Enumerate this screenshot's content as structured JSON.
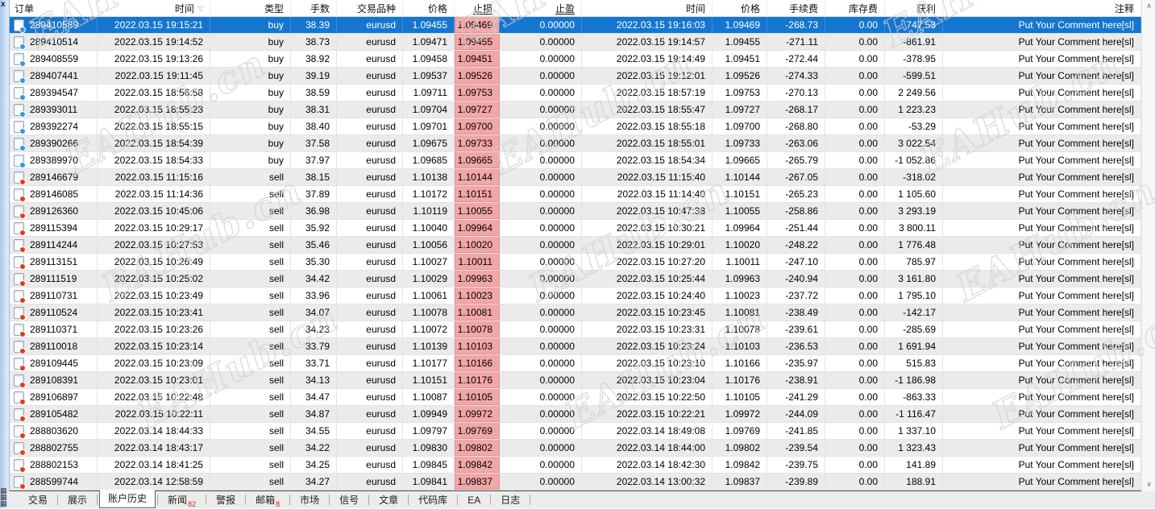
{
  "panel": {
    "close_label": "x",
    "corner_glyph": "▦▦▦"
  },
  "watermark": {
    "text": "EAHub.cn"
  },
  "colors": {
    "selection": "#1576d0",
    "sl_cell": "#f2a6a6",
    "buy_dot": "#2d9ae3",
    "sell_dot": "#df3b20",
    "badge": "#e02020"
  },
  "scrollbar": {
    "up_glyph": "∧",
    "down_glyph": "∨"
  },
  "table": {
    "sort_glyph": "▽",
    "columns": [
      {
        "id": "order",
        "label": "订单",
        "align": "l"
      },
      {
        "id": "time_open",
        "label": "时间",
        "align": "r",
        "sort": true
      },
      {
        "id": "type",
        "label": "类型",
        "align": "r"
      },
      {
        "id": "lots",
        "label": "手数",
        "align": "r"
      },
      {
        "id": "symbol",
        "label": "交易品种",
        "align": "r"
      },
      {
        "id": "price_open",
        "label": "价格",
        "align": "r"
      },
      {
        "id": "sl",
        "label": "止损",
        "align": "r",
        "underline": true
      },
      {
        "id": "tp",
        "label": "止盈",
        "align": "r",
        "underline": true
      },
      {
        "id": "time_close",
        "label": "时间",
        "align": "r"
      },
      {
        "id": "price_close",
        "label": "价格",
        "align": "r"
      },
      {
        "id": "commission",
        "label": "手续费",
        "align": "r"
      },
      {
        "id": "swap",
        "label": "库存费",
        "align": "r"
      },
      {
        "id": "profit",
        "label": "获利",
        "align": "r"
      },
      {
        "id": "comment",
        "label": "注释",
        "align": "r"
      }
    ],
    "rows": [
      {
        "selected": true,
        "order": "289410589",
        "time_open": "2022.03.15 19:15:21",
        "type": "buy",
        "lots": "38.39",
        "symbol": "eurusd",
        "price_open": "1.09455",
        "sl": "1.09469",
        "tp": "0.00000",
        "time_close": "2022.03.15 19:16:03",
        "price_close": "1.09469",
        "commission": "-268.73",
        "swap": "0.00",
        "profit": "747.53",
        "comment": "Put Your Comment here[sl]"
      },
      {
        "order": "289410514",
        "time_open": "2022.03.15 19:14:52",
        "type": "buy",
        "lots": "38.73",
        "symbol": "eurusd",
        "price_open": "1.09471",
        "sl": "1.09455",
        "tp": "0.00000",
        "time_close": "2022.03.15 19:14:57",
        "price_close": "1.09455",
        "commission": "-271.11",
        "swap": "0.00",
        "profit": "-861.91",
        "comment": "Put Your Comment here[sl]"
      },
      {
        "order": "289408559",
        "time_open": "2022.03.15 19:13:26",
        "type": "buy",
        "lots": "38.92",
        "symbol": "eurusd",
        "price_open": "1.09458",
        "sl": "1.09451",
        "tp": "0.00000",
        "time_close": "2022.03.15 19:14:49",
        "price_close": "1.09451",
        "commission": "-272.44",
        "swap": "0.00",
        "profit": "-378.95",
        "comment": "Put Your Comment here[sl]"
      },
      {
        "order": "289407441",
        "time_open": "2022.03.15 19:11:45",
        "type": "buy",
        "lots": "39.19",
        "symbol": "eurusd",
        "price_open": "1.09537",
        "sl": "1.09526",
        "tp": "0.00000",
        "time_close": "2022.03.15 19:12:01",
        "price_close": "1.09526",
        "commission": "-274.33",
        "swap": "0.00",
        "profit": "-599.51",
        "comment": "Put Your Comment here[sl]"
      },
      {
        "order": "289394547",
        "time_open": "2022.03.15 18:56:58",
        "type": "buy",
        "lots": "38.59",
        "symbol": "eurusd",
        "price_open": "1.09711",
        "sl": "1.09753",
        "tp": "0.00000",
        "time_close": "2022.03.15 18:57:19",
        "price_close": "1.09753",
        "commission": "-270.13",
        "swap": "0.00",
        "profit": "2 249.56",
        "comment": "Put Your Comment here[sl]"
      },
      {
        "order": "289393011",
        "time_open": "2022.03.15 18:55:23",
        "type": "buy",
        "lots": "38.31",
        "symbol": "eurusd",
        "price_open": "1.09704",
        "sl": "1.09727",
        "tp": "0.00000",
        "time_close": "2022.03.15 18:55:47",
        "price_close": "1.09727",
        "commission": "-268.17",
        "swap": "0.00",
        "profit": "1 223.23",
        "comment": "Put Your Comment here[sl]"
      },
      {
        "order": "289392274",
        "time_open": "2022.03.15 18:55:15",
        "type": "buy",
        "lots": "38.40",
        "symbol": "eurusd",
        "price_open": "1.09701",
        "sl": "1.09700",
        "tp": "0.00000",
        "time_close": "2022.03.15 18:55:18",
        "price_close": "1.09700",
        "commission": "-268.80",
        "swap": "0.00",
        "profit": "-53.29",
        "comment": "Put Your Comment here[sl]"
      },
      {
        "order": "289390266",
        "time_open": "2022.03.15 18:54:39",
        "type": "buy",
        "lots": "37.58",
        "symbol": "eurusd",
        "price_open": "1.09675",
        "sl": "1.09733",
        "tp": "0.00000",
        "time_close": "2022.03.15 18:55:01",
        "price_close": "1.09733",
        "commission": "-263.06",
        "swap": "0.00",
        "profit": "3 022.54",
        "comment": "Put Your Comment here[sl]"
      },
      {
        "order": "289389970",
        "time_open": "2022.03.15 18:54:33",
        "type": "buy",
        "lots": "37.97",
        "symbol": "eurusd",
        "price_open": "1.09685",
        "sl": "1.09665",
        "tp": "0.00000",
        "time_close": "2022.03.15 18:54:34",
        "price_close": "1.09665",
        "commission": "-265.79",
        "swap": "0.00",
        "profit": "-1 052.86",
        "comment": "Put Your Comment here[sl]"
      },
      {
        "order": "289146679",
        "time_open": "2022.03.15 11:15:16",
        "type": "sell",
        "lots": "38.15",
        "symbol": "eurusd",
        "price_open": "1.10138",
        "sl": "1.10144",
        "tp": "0.00000",
        "time_close": "2022.03.15 11:15:40",
        "price_close": "1.10144",
        "commission": "-267.05",
        "swap": "0.00",
        "profit": "-318.02",
        "comment": "Put Your Comment here[sl]"
      },
      {
        "order": "289146085",
        "time_open": "2022.03.15 11:14:36",
        "type": "sell",
        "lots": "37.89",
        "symbol": "eurusd",
        "price_open": "1.10172",
        "sl": "1.10151",
        "tp": "0.00000",
        "time_close": "2022.03.15 11:14:40",
        "price_close": "1.10151",
        "commission": "-265.23",
        "swap": "0.00",
        "profit": "1 105.60",
        "comment": "Put Your Comment here[sl]"
      },
      {
        "order": "289126360",
        "time_open": "2022.03.15 10:45:06",
        "type": "sell",
        "lots": "36.98",
        "symbol": "eurusd",
        "price_open": "1.10119",
        "sl": "1.10055",
        "tp": "0.00000",
        "time_close": "2022.03.15 10:47:38",
        "price_close": "1.10055",
        "commission": "-258.86",
        "swap": "0.00",
        "profit": "3 293.19",
        "comment": "Put Your Comment here[sl]"
      },
      {
        "order": "289115394",
        "time_open": "2022.03.15 10:29:17",
        "type": "sell",
        "lots": "35.92",
        "symbol": "eurusd",
        "price_open": "1.10040",
        "sl": "1.09964",
        "tp": "0.00000",
        "time_close": "2022.03.15 10:30:21",
        "price_close": "1.09964",
        "commission": "-251.44",
        "swap": "0.00",
        "profit": "3 800.11",
        "comment": "Put Your Comment here[sl]"
      },
      {
        "order": "289114244",
        "time_open": "2022.03.15 10:27:53",
        "type": "sell",
        "lots": "35.46",
        "symbol": "eurusd",
        "price_open": "1.10056",
        "sl": "1.10020",
        "tp": "0.00000",
        "time_close": "2022.03.15 10:29:01",
        "price_close": "1.10020",
        "commission": "-248.22",
        "swap": "0.00",
        "profit": "1 776.48",
        "comment": "Put Your Comment here[sl]"
      },
      {
        "order": "289113151",
        "time_open": "2022.03.15 10:26:49",
        "type": "sell",
        "lots": "35.30",
        "symbol": "eurusd",
        "price_open": "1.10027",
        "sl": "1.10011",
        "tp": "0.00000",
        "time_close": "2022.03.15 10:27:20",
        "price_close": "1.10011",
        "commission": "-247.10",
        "swap": "0.00",
        "profit": "785.97",
        "comment": "Put Your Comment here[sl]"
      },
      {
        "order": "289111519",
        "time_open": "2022.03.15 10:25:02",
        "type": "sell",
        "lots": "34.42",
        "symbol": "eurusd",
        "price_open": "1.10029",
        "sl": "1.09963",
        "tp": "0.00000",
        "time_close": "2022.03.15 10:25:44",
        "price_close": "1.09963",
        "commission": "-240.94",
        "swap": "0.00",
        "profit": "3 161.80",
        "comment": "Put Your Comment here[sl]"
      },
      {
        "order": "289110731",
        "time_open": "2022.03.15 10:23:49",
        "type": "sell",
        "lots": "33.96",
        "symbol": "eurusd",
        "price_open": "1.10061",
        "sl": "1.10023",
        "tp": "0.00000",
        "time_close": "2022.03.15 10:24:40",
        "price_close": "1.10023",
        "commission": "-237.72",
        "swap": "0.00",
        "profit": "1 795.10",
        "comment": "Put Your Comment here[sl]"
      },
      {
        "order": "289110524",
        "time_open": "2022.03.15 10:23:41",
        "type": "sell",
        "lots": "34.07",
        "symbol": "eurusd",
        "price_open": "1.10078",
        "sl": "1.10081",
        "tp": "0.00000",
        "time_close": "2022.03.15 10:23:45",
        "price_close": "1.10081",
        "commission": "-238.49",
        "swap": "0.00",
        "profit": "-142.17",
        "comment": "Put Your Comment here[sl]"
      },
      {
        "order": "289110371",
        "time_open": "2022.03.15 10:23:26",
        "type": "sell",
        "lots": "34.23",
        "symbol": "eurusd",
        "price_open": "1.10072",
        "sl": "1.10078",
        "tp": "0.00000",
        "time_close": "2022.03.15 10:23:31",
        "price_close": "1.10078",
        "commission": "-239.61",
        "swap": "0.00",
        "profit": "-285.69",
        "comment": "Put Your Comment here[sl]"
      },
      {
        "order": "289110018",
        "time_open": "2022.03.15 10:23:14",
        "type": "sell",
        "lots": "33.79",
        "symbol": "eurusd",
        "price_open": "1.10139",
        "sl": "1.10103",
        "tp": "0.00000",
        "time_close": "2022.03.15 10:23:24",
        "price_close": "1.10103",
        "commission": "-236.53",
        "swap": "0.00",
        "profit": "1 691.94",
        "comment": "Put Your Comment here[sl]"
      },
      {
        "order": "289109445",
        "time_open": "2022.03.15 10:23:09",
        "type": "sell",
        "lots": "33.71",
        "symbol": "eurusd",
        "price_open": "1.10177",
        "sl": "1.10166",
        "tp": "0.00000",
        "time_close": "2022.03.15 10:23:10",
        "price_close": "1.10166",
        "commission": "-235.97",
        "swap": "0.00",
        "profit": "515.83",
        "comment": "Put Your Comment here[sl]"
      },
      {
        "order": "289108391",
        "time_open": "2022.03.15 10:23:01",
        "type": "sell",
        "lots": "34.13",
        "symbol": "eurusd",
        "price_open": "1.10151",
        "sl": "1.10176",
        "tp": "0.00000",
        "time_close": "2022.03.15 10:23:04",
        "price_close": "1.10176",
        "commission": "-238.91",
        "swap": "0.00",
        "profit": "-1 186.98",
        "comment": "Put Your Comment here[sl]"
      },
      {
        "order": "289106897",
        "time_open": "2022.03.15 10:22:48",
        "type": "sell",
        "lots": "34.47",
        "symbol": "eurusd",
        "price_open": "1.10087",
        "sl": "1.10105",
        "tp": "0.00000",
        "time_close": "2022.03.15 10:22:50",
        "price_close": "1.10105",
        "commission": "-241.29",
        "swap": "0.00",
        "profit": "-863.33",
        "comment": "Put Your Comment here[sl]"
      },
      {
        "order": "289105482",
        "time_open": "2022.03.15 10:22:11",
        "type": "sell",
        "lots": "34.87",
        "symbol": "eurusd",
        "price_open": "1.09949",
        "sl": "1.09972",
        "tp": "0.00000",
        "time_close": "2022.03.15 10:22:21",
        "price_close": "1.09972",
        "commission": "-244.09",
        "swap": "0.00",
        "profit": "-1 116.47",
        "comment": "Put Your Comment here[sl]"
      },
      {
        "order": "288803620",
        "time_open": "2022.03.14 18:44:33",
        "type": "sell",
        "lots": "34.55",
        "symbol": "eurusd",
        "price_open": "1.09797",
        "sl": "1.09769",
        "tp": "0.00000",
        "time_close": "2022.03.14 18:49:08",
        "price_close": "1.09769",
        "commission": "-241.85",
        "swap": "0.00",
        "profit": "1 337.10",
        "comment": "Put Your Comment here[sl]"
      },
      {
        "order": "288802755",
        "time_open": "2022.03.14 18:43:17",
        "type": "sell",
        "lots": "34.22",
        "symbol": "eurusd",
        "price_open": "1.09830",
        "sl": "1.09802",
        "tp": "0.00000",
        "time_close": "2022.03.14 18:44:00",
        "price_close": "1.09802",
        "commission": "-239.54",
        "swap": "0.00",
        "profit": "1 323.43",
        "comment": "Put Your Comment here[sl]"
      },
      {
        "order": "288802153",
        "time_open": "2022.03.14 18:41:25",
        "type": "sell",
        "lots": "34.25",
        "symbol": "eurusd",
        "price_open": "1.09845",
        "sl": "1.09842",
        "tp": "0.00000",
        "time_close": "2022.03.14 18:42:30",
        "price_close": "1.09842",
        "commission": "-239.75",
        "swap": "0.00",
        "profit": "141.89",
        "comment": "Put Your Comment here[sl]"
      },
      {
        "order": "288599744",
        "time_open": "2022.03.14 12:58:59",
        "type": "sell",
        "lots": "34.27",
        "symbol": "eurusd",
        "price_open": "1.09841",
        "sl": "1.09837",
        "tp": "0.00000",
        "time_close": "2022.03.14 13:00:32",
        "price_close": "1.09837",
        "commission": "-239.89",
        "swap": "0.00",
        "profit": "188.91",
        "comment": "Put Your Comment here[sl]"
      }
    ]
  },
  "tabs": {
    "items": [
      {
        "id": "trade",
        "label": "交易"
      },
      {
        "id": "exposure",
        "label": "展示"
      },
      {
        "id": "account-history",
        "label": "账户历史",
        "active": true
      },
      {
        "id": "news",
        "label": "新闻",
        "badge": "82"
      },
      {
        "id": "alerts",
        "label": "警报"
      },
      {
        "id": "mailbox",
        "label": "邮箱",
        "badge": "8"
      },
      {
        "id": "market",
        "label": "市场"
      },
      {
        "id": "signals",
        "label": "信号"
      },
      {
        "id": "articles",
        "label": "文章"
      },
      {
        "id": "codebase",
        "label": "代码库"
      },
      {
        "id": "ea",
        "label": "EA"
      },
      {
        "id": "journal",
        "label": "日志"
      }
    ]
  }
}
